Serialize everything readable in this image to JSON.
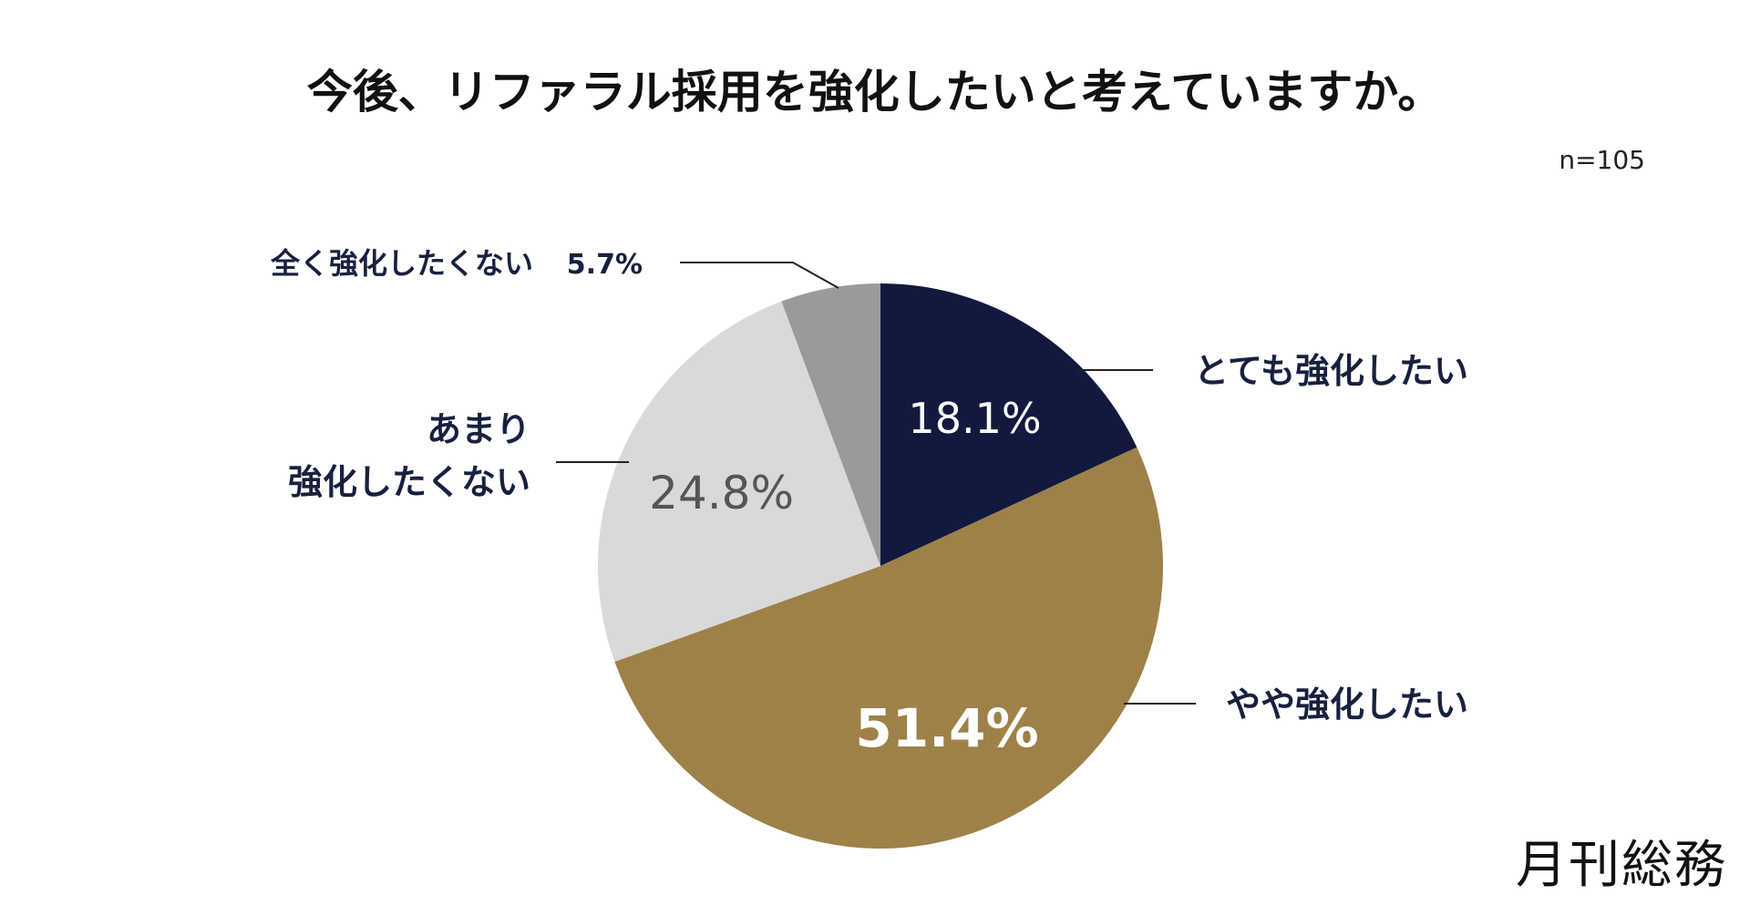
{
  "title": "今後、リファラル採用を強化したいと考えていますか。",
  "sample_size": "n=105",
  "logo": "月刊総務",
  "chart_data": {
    "type": "pie",
    "title": "今後、リファラル採用を強化したいと考えていますか。",
    "start_angle_deg": 0,
    "direction": "clockwise",
    "slices": [
      {
        "label": "とても強化したい",
        "value": 18.1,
        "value_label": "18.1%",
        "color": "#111a3e"
      },
      {
        "label": "やや強化したい",
        "value": 51.4,
        "value_label": "51.4%",
        "color": "#9e8148"
      },
      {
        "label_lines": [
          "あまり",
          "強化したくない"
        ],
        "value": 24.8,
        "value_label": "24.8%",
        "color": "#d9d9d9"
      },
      {
        "label": "全く強化したくない",
        "value": 5.7,
        "value_label": "5.7%",
        "color": "#9a9b99"
      }
    ],
    "value_label_colors": [
      "#ffffff",
      "#ffffff",
      "#555555",
      "#17213f"
    ]
  }
}
